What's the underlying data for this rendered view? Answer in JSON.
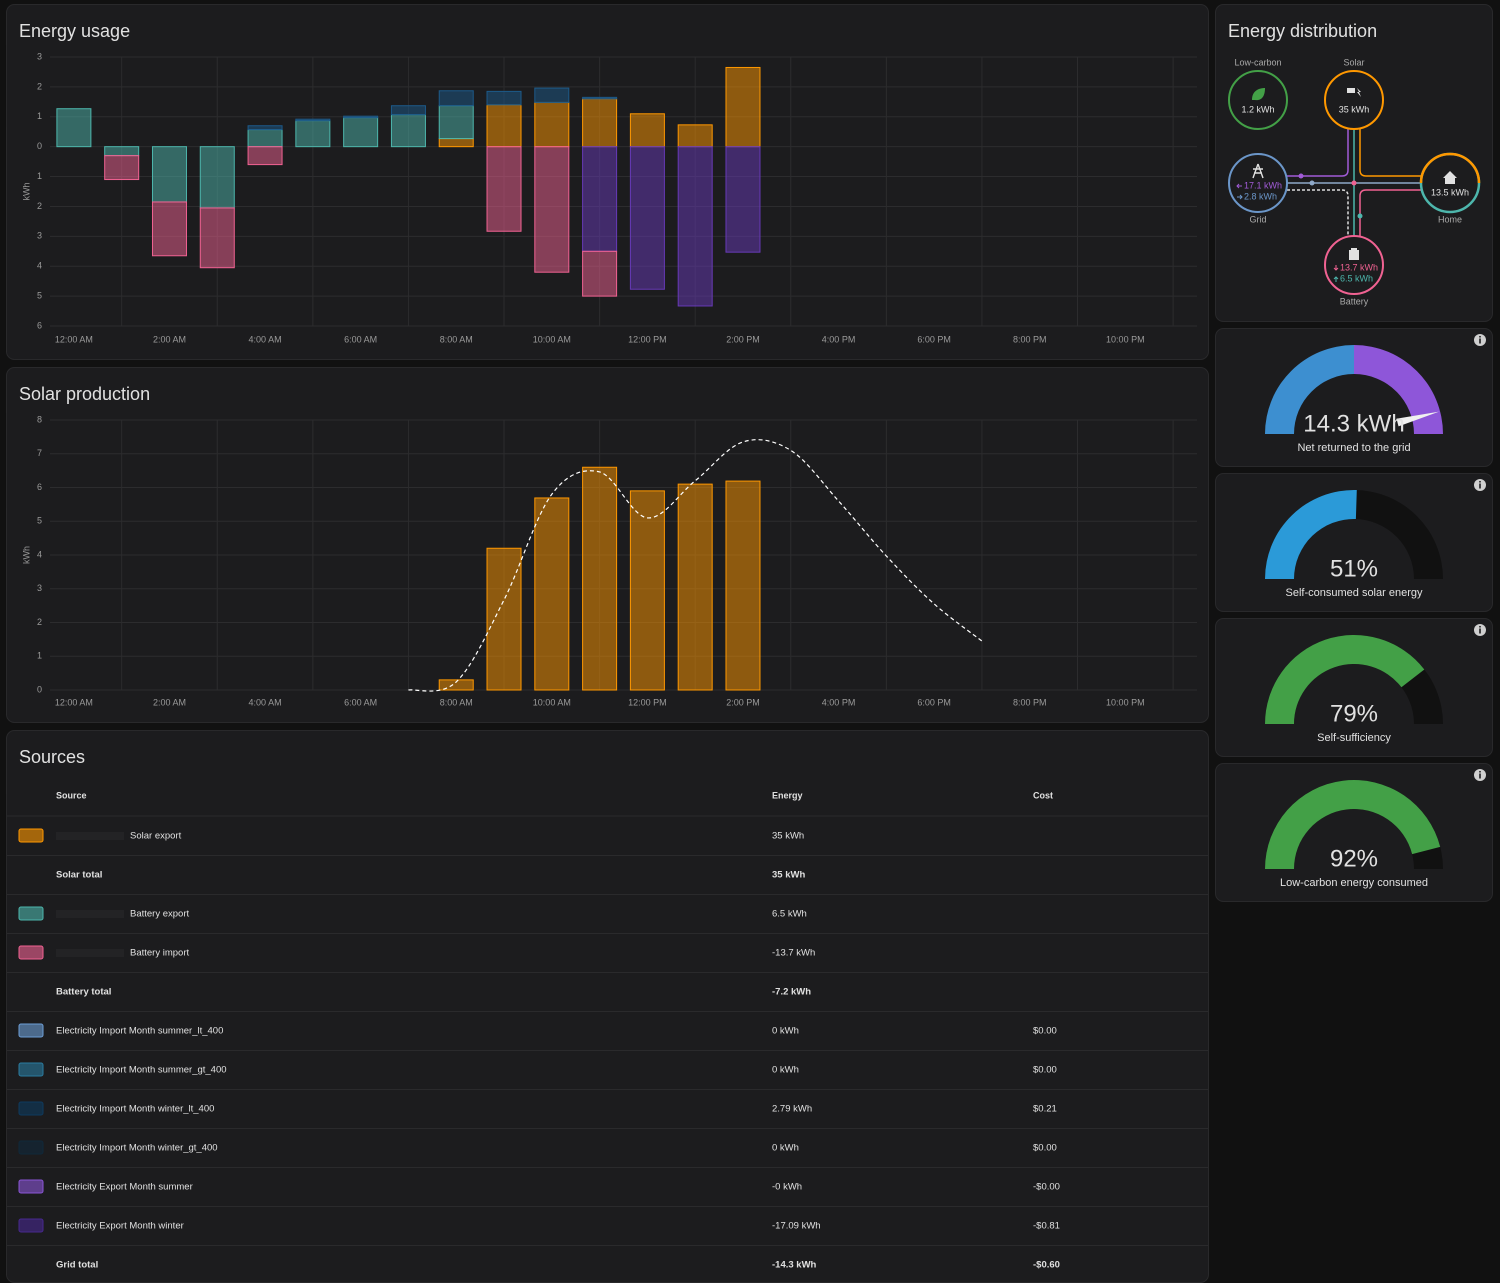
{
  "chart_data": [
    {
      "type": "bar",
      "title": "Energy usage",
      "y_label": "kWh",
      "stacked": true,
      "grid": true,
      "categories": [
        "12:00 AM",
        null,
        "2:00 AM",
        null,
        "4:00 AM",
        null,
        "6:00 AM",
        null,
        "8:00 AM",
        null,
        "10:00 AM",
        null,
        "12:00 PM",
        null,
        "2:00 PM",
        null,
        "4:00 PM",
        null,
        "6:00 PM",
        null,
        "8:00 PM",
        null,
        "10:00 PM",
        null
      ],
      "ylim": [
        -6,
        3
      ],
      "yticks": [
        3,
        2,
        1,
        0,
        {
          "value": -1,
          "label": "1"
        },
        {
          "value": -2,
          "label": "2"
        },
        {
          "value": -3,
          "label": "3"
        },
        {
          "value": -4,
          "label": "4"
        },
        {
          "value": -5,
          "label": "5"
        },
        {
          "value": -6,
          "label": "6"
        }
      ],
      "series": [
        {
          "color": "#ff9800",
          "values": [
            null,
            null,
            null,
            null,
            null,
            null,
            null,
            null,
            0.27,
            1.4,
            1.48,
            1.6,
            1.1,
            0.73,
            2.65,
            null,
            null,
            null,
            null,
            null,
            null,
            null,
            null,
            null
          ]
        },
        {
          "color": "#4db6ac",
          "values": [
            1.27,
            -0.3,
            -1.85,
            -2.05,
            0.57,
            0.87,
            0.97,
            1.07,
            1.1,
            null,
            null,
            null,
            null,
            null,
            null,
            null,
            null,
            null,
            null,
            null,
            null,
            null,
            null,
            null
          ]
        },
        {
          "color": "#1c5a8a",
          "values": [
            null,
            null,
            null,
            null,
            0.13,
            0.05,
            0.05,
            0.3,
            0.5,
            0.45,
            0.48,
            0.05,
            null,
            null,
            null,
            null,
            null,
            null,
            null,
            null,
            null,
            null,
            null,
            null
          ]
        },
        {
          "color": "#673ab7",
          "values": [
            null,
            null,
            null,
            null,
            null,
            null,
            null,
            null,
            null,
            null,
            null,
            -3.5,
            -4.77,
            -5.33,
            -3.53,
            null,
            null,
            null,
            null,
            null,
            null,
            null,
            null,
            null
          ]
        },
        {
          "color": "#f06292",
          "values": [
            null,
            -0.8,
            -1.8,
            -2.0,
            -0.6,
            null,
            null,
            null,
            null,
            -2.83,
            -4.2,
            -1.5,
            null,
            null,
            null,
            null,
            null,
            null,
            null,
            null,
            null,
            null,
            null,
            null
          ]
        }
      ]
    },
    {
      "type": "bar",
      "title": "Solar production",
      "y_label": "kWh",
      "grid": true,
      "categories": [
        "12:00 AM",
        null,
        "2:00 AM",
        null,
        "4:00 AM",
        null,
        "6:00 AM",
        null,
        "8:00 AM",
        null,
        "10:00 AM",
        null,
        "12:00 PM",
        null,
        "2:00 PM",
        null,
        "4:00 PM",
        null,
        "6:00 PM",
        null,
        "8:00 PM",
        null,
        "10:00 PM",
        null
      ],
      "ylim": [
        0,
        8
      ],
      "yticks": [
        0,
        1,
        2,
        3,
        4,
        5,
        6,
        7,
        8
      ],
      "series": [
        {
          "color": "#ff9800",
          "values": [
            null,
            null,
            null,
            null,
            null,
            null,
            null,
            null,
            0.3,
            4.2,
            5.69,
            6.6,
            5.9,
            6.1,
            6.19,
            null,
            null,
            null,
            null,
            null,
            null,
            null,
            null,
            null
          ]
        },
        {
          "type": "line",
          "color": "#ffffff",
          "dashed": true,
          "values": [
            null,
            null,
            null,
            null,
            null,
            null,
            null,
            0,
            0.24,
            2.67,
            5.8,
            6.46,
            5.1,
            6.2,
            7.35,
            7.1,
            5.6,
            3.97,
            2.55,
            1.45,
            null,
            null,
            null,
            null
          ]
        }
      ]
    },
    {
      "type": "gauge",
      "value": 14.3,
      "value_label": "14.3 kWh",
      "label": "Net returned to the grid",
      "ylim": [
        -17.1,
        17.1
      ],
      "colors": [
        "#3d8fd0",
        "#8e56d9"
      ],
      "needle": true
    },
    {
      "type": "gauge",
      "value": 51,
      "value_label": "51%",
      "label": "Self-consumed solar energy",
      "ylim": [
        0,
        100
      ],
      "color": "#2b9ad8"
    },
    {
      "type": "gauge",
      "value": 79,
      "value_label": "79%",
      "label": "Self-sufficiency",
      "ylim": [
        0,
        100
      ],
      "color": "#43a047"
    },
    {
      "type": "gauge",
      "value": 92,
      "value_label": "92%",
      "label": "Low-carbon energy consumed",
      "ylim": [
        0,
        100
      ],
      "color": "#43a047"
    }
  ],
  "distribution": {
    "title": "Energy distribution",
    "nodes": [
      {
        "label": "Low-carbon",
        "value": "1.2 kWh"
      },
      {
        "label": "Solar",
        "value": "35 kWh"
      },
      {
        "label": "Grid",
        "in": "17.1 kWh",
        "out": "2.8 kWh"
      },
      {
        "label": "Home",
        "value": "13.5 kWh"
      },
      {
        "label": "Battery",
        "in": "13.7 kWh",
        "out": "6.5 kWh"
      }
    ]
  },
  "sources": {
    "title": "Sources",
    "columns": [
      "Source",
      "Energy",
      "Cost"
    ],
    "rows": [
      {
        "color": "#ff9800",
        "source": "Solar export",
        "energy": "35 kWh"
      },
      {
        "source": "Solar total",
        "energy": "35 kWh",
        "total": true
      },
      {
        "color": "#4db6ac",
        "source": "Battery export",
        "energy": "6.5 kWh"
      },
      {
        "color": "#f06292",
        "source": "Battery import",
        "energy": "-13.7 kWh"
      },
      {
        "source": "Battery total",
        "energy": "-7.2 kWh",
        "total": true
      },
      {
        "color": "#6d9ed6",
        "source": "Electricity Import Month summer_lt_400",
        "energy": "0 kWh",
        "cost": "$0.00"
      },
      {
        "color": "#2a7ca0",
        "source": "Electricity Import Month summer_gt_400",
        "energy": "0 kWh",
        "cost": "$0.00"
      },
      {
        "color": "#0e3a5e",
        "source": "Electricity Import Month winter_lt_400",
        "energy": "2.79 kWh",
        "cost": "$0.21"
      },
      {
        "color": "#10283a",
        "source": "Electricity Import Month winter_gt_400",
        "energy": "0 kWh",
        "cost": "$0.00"
      },
      {
        "color": "#8a55d6",
        "source": "Electricity Export Month summer",
        "energy": "-0 kWh",
        "cost": "-$0.00"
      },
      {
        "color": "#47288f",
        "source": "Electricity Export Month winter",
        "energy": "-17.09 kWh",
        "cost": "-$0.81"
      },
      {
        "source": "Grid total",
        "energy": "-14.3 kWh",
        "cost": "-$0.60",
        "total": true
      }
    ]
  }
}
